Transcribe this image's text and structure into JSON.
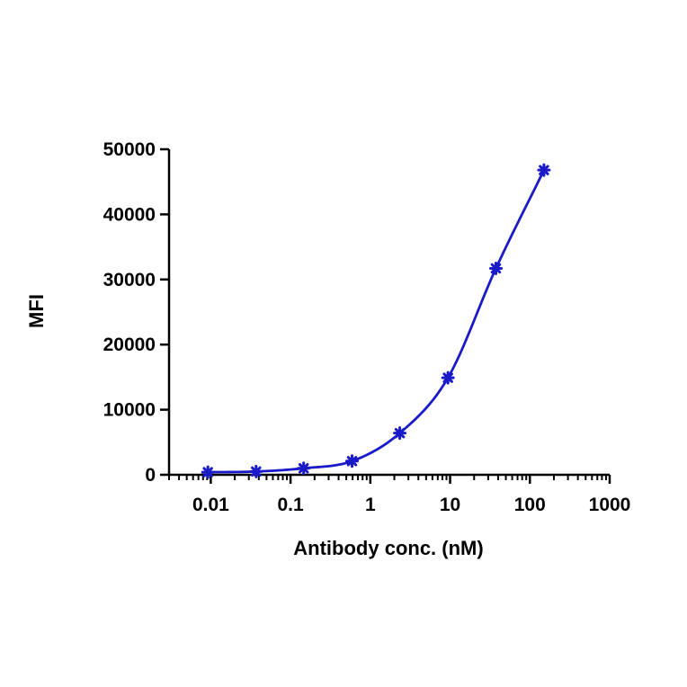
{
  "chart_data": {
    "type": "scatter",
    "xlabel": "Antibody conc. (nM)",
    "ylabel": "MFI",
    "x_scale": "log",
    "xlim": [
      0.003,
      1000
    ],
    "ylim": [
      0,
      50000
    ],
    "x_ticks": [
      {
        "value": 0.01,
        "label": "0.01"
      },
      {
        "value": 0.1,
        "label": "0.1"
      },
      {
        "value": 1,
        "label": "1"
      },
      {
        "value": 10,
        "label": "10"
      },
      {
        "value": 100,
        "label": "100"
      },
      {
        "value": 1000,
        "label": "1000"
      }
    ],
    "y_ticks": [
      {
        "value": 0,
        "label": "0"
      },
      {
        "value": 10000,
        "label": "10000"
      },
      {
        "value": 20000,
        "label": "20000"
      },
      {
        "value": 30000,
        "label": "30000"
      },
      {
        "value": 40000,
        "label": "40000"
      },
      {
        "value": 50000,
        "label": "50000"
      }
    ],
    "series": [
      {
        "color": "#1a1ac8",
        "marker": "asterisk",
        "fit": "four-parameter logistic curve",
        "x": [
          0.0092,
          0.037,
          0.146,
          0.59,
          2.34,
          9.4,
          37.5,
          150
        ],
        "y": [
          400,
          500,
          1000,
          2100,
          6400,
          14900,
          31700,
          46800
        ]
      }
    ],
    "grid": false,
    "legend": "none"
  }
}
